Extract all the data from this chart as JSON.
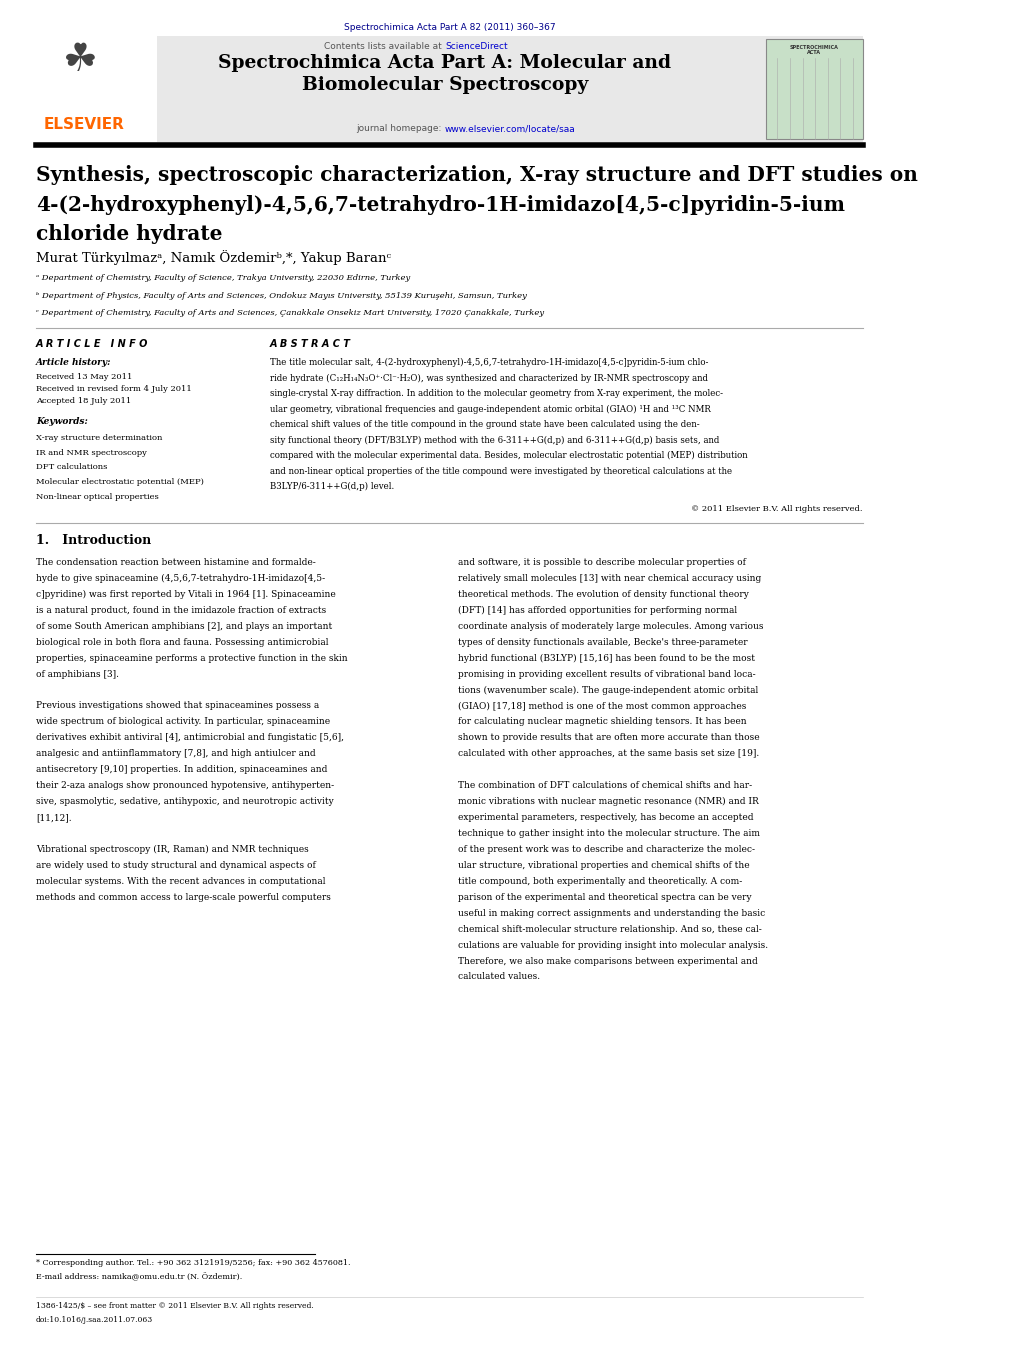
{
  "page_width": 10.21,
  "page_height": 13.51,
  "bg_color": "#ffffff",
  "header_journal_ref": "Spectrochimica Acta Part A 82 (2011) 360–367",
  "header_journal_ref_color": "#00008B",
  "header_bg_color": "#e8e8e8",
  "header_title_journal": "Spectrochimica Acta Part A: Molecular and\nBiomolecular Spectroscopy",
  "header_homepage_text": "journal homepage: ",
  "header_homepage_url": "www.elsevier.com/locate/saa",
  "header_contents": "Contents lists available at ",
  "header_sciencedirect": "ScienceDirect",
  "elsevier_color": "#FF6600",
  "link_color": "#0000CD",
  "paper_title_line1": "Synthesis, spectroscopic characterization, X-ray structure and DFT studies on",
  "paper_title_line2": "4-(2-hydroxyphenyl)-4,5,6,7-tetrahydro-1H-imidazo[4,5-c]pyridin-5-ium",
  "paper_title_line3": "chloride hydrate",
  "authors": "Murat Türkyılmazᵃ, Namık Özdemirᵇ,*, Yakup Baranᶜ",
  "affil_a": "ᵃ Department of Chemistry, Faculty of Science, Trakya University, 22030 Edirne, Turkey",
  "affil_b": "ᵇ Department of Physics, Faculty of Arts and Sciences, Ondokuz Mayıs University, 55139 Kuruşehi, Samsun, Turkey",
  "affil_c": "ᶜ Department of Chemistry, Faculty of Arts and Sciences, Çanakkale Onsekiz Mart University, 17020 Çanakkale, Turkey",
  "article_info_title": "A R T I C L E   I N F O",
  "abstract_title": "A B S T R A C T",
  "article_history_label": "Article history:",
  "received_1": "Received 13 May 2011",
  "received_rev": "Received in revised form 4 July 2011",
  "accepted": "Accepted 18 July 2011",
  "keywords_label": "Keywords:",
  "keyword1": "X-ray structure determination",
  "keyword2": "IR and NMR spectroscopy",
  "keyword3": "DFT calculations",
  "keyword4": "Molecular electrostatic potential (MEP)",
  "keyword5": "Non-linear optical properties",
  "copyright_text": "© 2011 Elsevier B.V. All rights reserved.",
  "intro_title": "1.   Introduction",
  "footnote_star": "* Corresponding author. Tel.: +90 362 3121919/5256; fax: +90 362 4576081.",
  "footnote_email": "E-mail address: namika@omu.edu.tr (N. Özdemir).",
  "footnote_issn": "1386-1425/$ – see front matter © 2011 Elsevier B.V. All rights reserved.",
  "footnote_doi": "doi:10.1016/j.saa.2011.07.063"
}
